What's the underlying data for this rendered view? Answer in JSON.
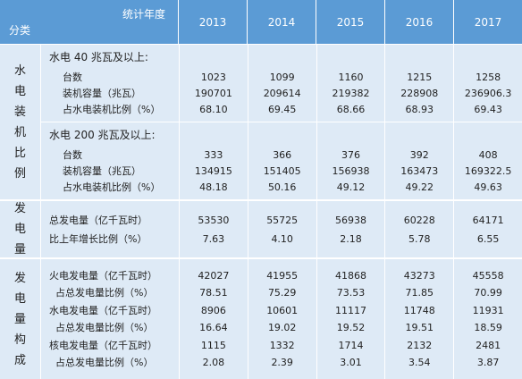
{
  "header": {
    "corner_top": "统计年度",
    "corner_bottom": "分类",
    "years": [
      "2013",
      "2014",
      "2015",
      "2016",
      "2017"
    ]
  },
  "groups": [
    {
      "label": "水电装机比例",
      "blocks": [
        {
          "title": "水电 40 兆瓦及以上:",
          "rows": [
            {
              "name": "台数",
              "values": [
                "1023",
                "1099",
                "1160",
                "1215",
                "1258"
              ]
            },
            {
              "name": "装机容量（兆瓦）",
              "values": [
                "190701",
                "209614",
                "219382",
                "228908",
                "236906.3"
              ]
            },
            {
              "name": "占水电装机比例（%）",
              "values": [
                "68.10",
                "69.45",
                "68.66",
                "68.93",
                "69.43"
              ]
            }
          ]
        },
        {
          "title": "水电 200 兆瓦及以上:",
          "rows": [
            {
              "name": "台数",
              "values": [
                "333",
                "366",
                "376",
                "392",
                "408"
              ]
            },
            {
              "name": "装机容量（兆瓦）",
              "values": [
                "134915",
                "151405",
                "156938",
                "163473",
                "169322.5"
              ]
            },
            {
              "name": "占水电装机比例（%）",
              "values": [
                "48.18",
                "50.16",
                "49.12",
                "49.22",
                "49.63"
              ]
            }
          ]
        }
      ]
    },
    {
      "label": "发电量",
      "blocks": [
        {
          "rows": [
            {
              "name": "总发电量（亿千瓦时）",
              "values": [
                "53530",
                "55725",
                "56938",
                "60228",
                "64171"
              ]
            },
            {
              "name": "比上年增长比例（%）",
              "values": [
                "7.63",
                "4.10",
                "2.18",
                "5.78",
                "6.55"
              ]
            }
          ]
        }
      ]
    },
    {
      "label": "发电量构成",
      "blocks": [
        {
          "rows": [
            {
              "name": "火电发电量（亿千瓦时）",
              "values": [
                "42027",
                "41955",
                "41868",
                "43273",
                "45558"
              ]
            },
            {
              "name": "占总发电量比例（%）",
              "values": [
                "78.51",
                "75.29",
                "73.53",
                "71.85",
                "70.99"
              ]
            },
            {
              "name": "水电发电量（亿千瓦时）",
              "values": [
                "8906",
                "10601",
                "11117",
                "11748",
                "11931"
              ]
            },
            {
              "name": "占总发电量比例（%）",
              "values": [
                "16.64",
                "19.02",
                "19.52",
                "19.51",
                "18.59"
              ]
            },
            {
              "name": "核电发电量（亿千瓦时）",
              "values": [
                "1115",
                "1332",
                "1714",
                "2132",
                "2481"
              ]
            },
            {
              "name": "占总发电量比例（%）",
              "values": [
                "2.08",
                "2.39",
                "3.01",
                "3.54",
                "3.87"
              ]
            }
          ]
        }
      ]
    }
  ]
}
